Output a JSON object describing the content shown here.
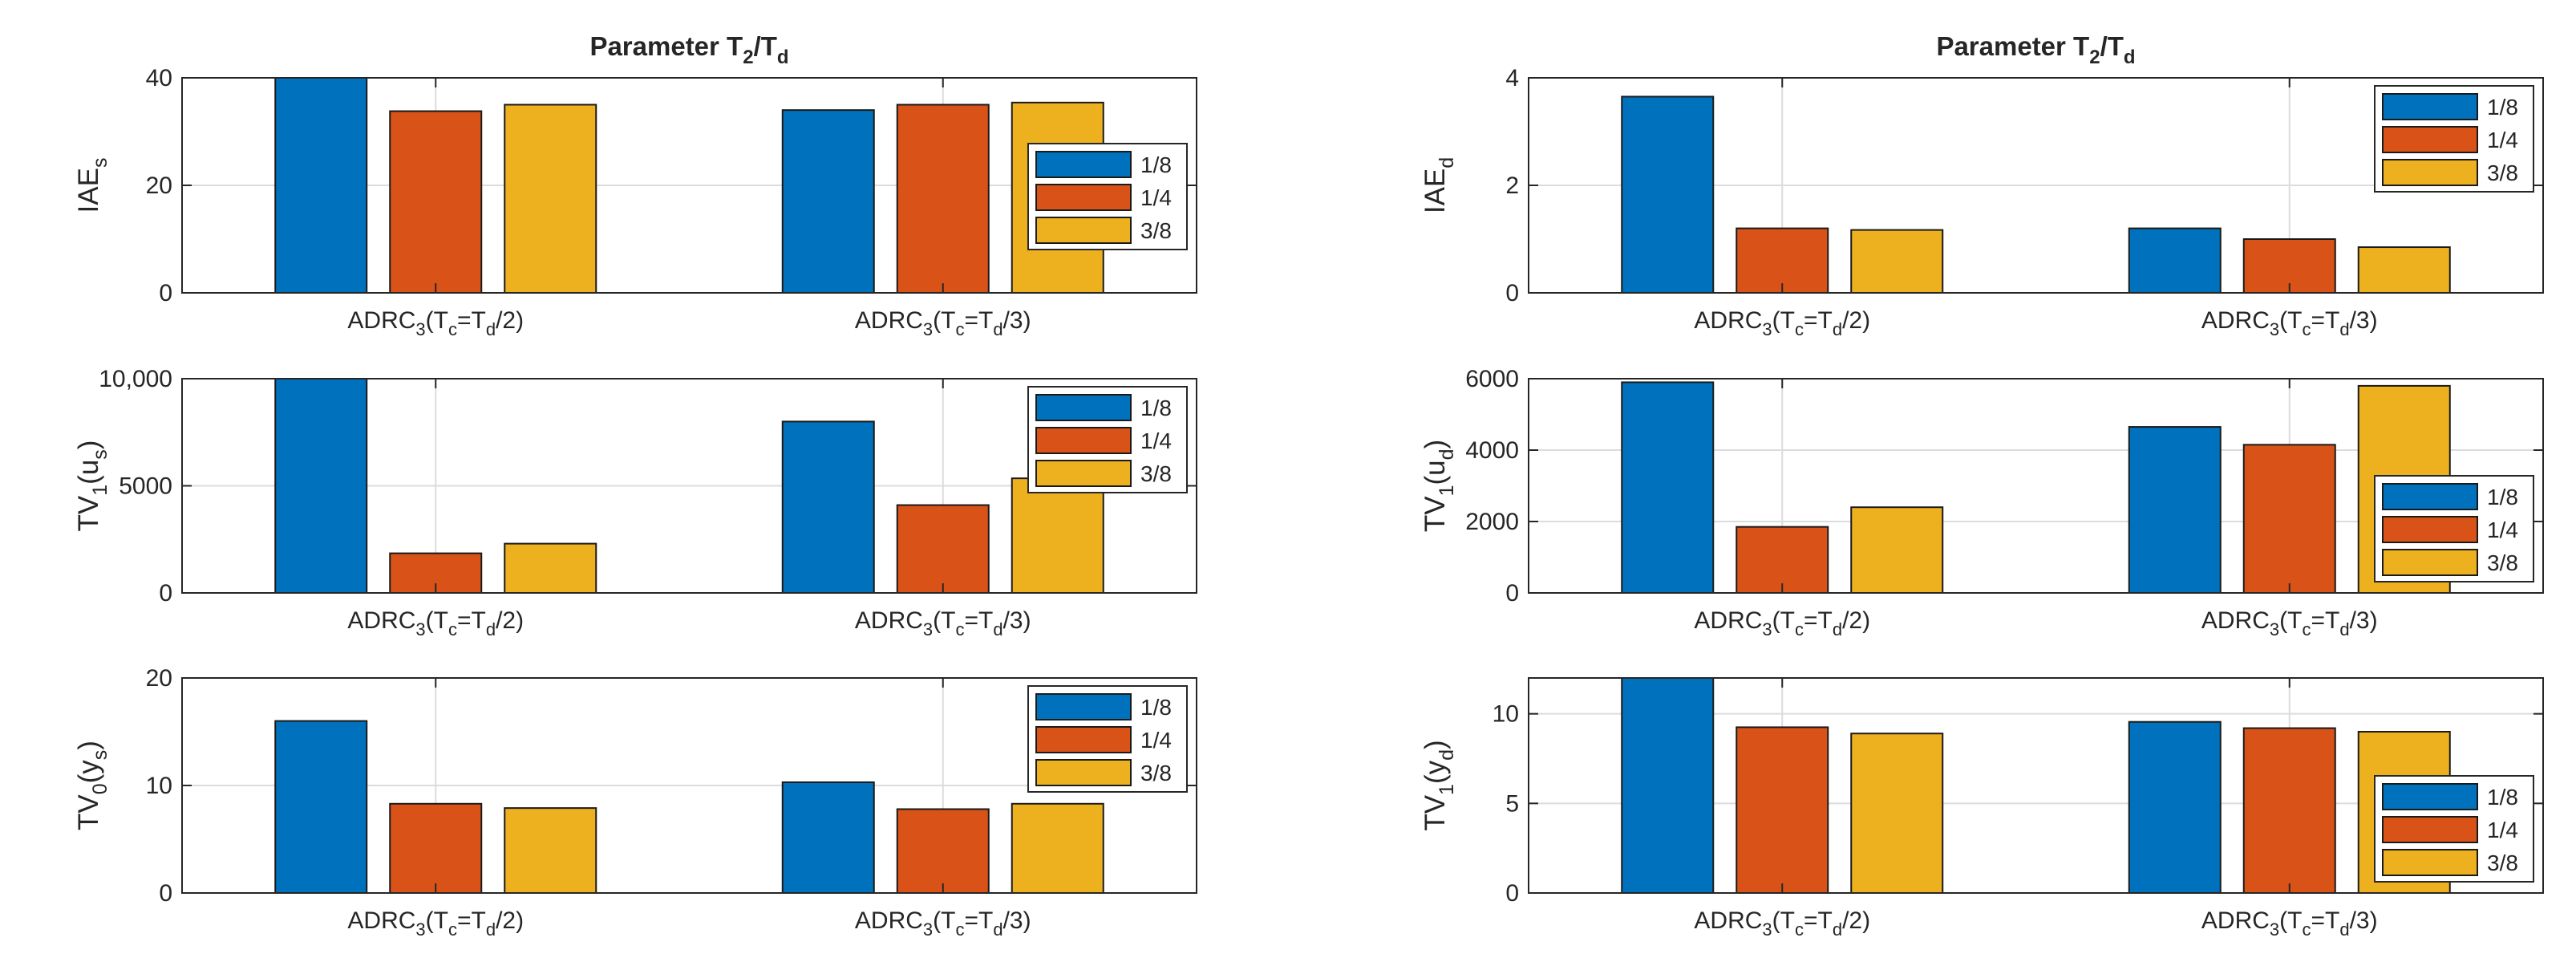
{
  "colors": {
    "s0": "#0072bd",
    "s1": "#d95319",
    "s2": "#edb120"
  },
  "chart_data": [
    {
      "type": "bar",
      "title": "Parameter T",
      "title_parts": [
        "2",
        "/T",
        "d"
      ],
      "ylabel": "IAE",
      "ylabel_sub": "s",
      "ylim": [
        0,
        40
      ],
      "yticks": [
        0,
        20,
        40
      ],
      "ytick_labels": [
        "0",
        "20",
        "40"
      ],
      "category_parts": [
        [
          "ADRC",
          "3",
          "(T",
          "c",
          "=T",
          "d",
          "/2)"
        ],
        [
          "ADRC",
          "3",
          "(T",
          "c",
          "=T",
          "d",
          "/3)"
        ]
      ],
      "series": [
        {
          "name": "1/8",
          "values": [
            40,
            34
          ]
        },
        {
          "name": "1/4",
          "values": [
            33.8,
            35
          ]
        },
        {
          "name": "3/8",
          "values": [
            35,
            35.4
          ]
        }
      ],
      "legend": "east"
    },
    {
      "type": "bar",
      "title": "Parameter T",
      "title_parts": [
        "2",
        "/T",
        "d"
      ],
      "ylabel": "IAE",
      "ylabel_sub": "d",
      "ylim": [
        0,
        4
      ],
      "yticks": [
        0,
        2,
        4
      ],
      "ytick_labels": [
        "0",
        "2",
        "4"
      ],
      "category_parts": [
        [
          "ADRC",
          "3",
          "(T",
          "c",
          "=T",
          "d",
          "/2)"
        ],
        [
          "ADRC",
          "3",
          "(T",
          "c",
          "=T",
          "d",
          "/3)"
        ]
      ],
      "series": [
        {
          "name": "1/8",
          "values": [
            3.65,
            1.2
          ]
        },
        {
          "name": "1/4",
          "values": [
            1.2,
            1.0
          ]
        },
        {
          "name": "3/8",
          "values": [
            1.17,
            0.85
          ]
        }
      ],
      "legend": "northeast"
    },
    {
      "type": "bar",
      "ylabel": "TV",
      "ylabel_sub": "1",
      "ylabel_arg": "u",
      "ylabel_arg_sub": "s",
      "ylim": [
        0,
        10000
      ],
      "yticks": [
        0,
        5000,
        10000
      ],
      "ytick_labels": [
        "0",
        "5000",
        "10,000"
      ],
      "category_parts": [
        [
          "ADRC",
          "3",
          "(T",
          "c",
          "=T",
          "d",
          "/2)"
        ],
        [
          "ADRC",
          "3",
          "(T",
          "c",
          "=T",
          "d",
          "/3)"
        ]
      ],
      "series": [
        {
          "name": "1/8",
          "values": [
            10000,
            8000
          ]
        },
        {
          "name": "1/4",
          "values": [
            1850,
            4100
          ]
        },
        {
          "name": "3/8",
          "values": [
            2300,
            5350
          ]
        }
      ],
      "legend": "northeast"
    },
    {
      "type": "bar",
      "ylabel": "TV",
      "ylabel_sub": "1",
      "ylabel_arg": "u",
      "ylabel_arg_sub": "d",
      "ylim": [
        0,
        6000
      ],
      "yticks": [
        0,
        2000,
        4000,
        6000
      ],
      "ytick_labels": [
        "0",
        "2000",
        "4000",
        "6000"
      ],
      "category_parts": [
        [
          "ADRC",
          "3",
          "(T",
          "c",
          "=T",
          "d",
          "/2)"
        ],
        [
          "ADRC",
          "3",
          "(T",
          "c",
          "=T",
          "d",
          "/3)"
        ]
      ],
      "series": [
        {
          "name": "1/8",
          "values": [
            5900,
            4650
          ]
        },
        {
          "name": "1/4",
          "values": [
            1850,
            4150
          ]
        },
        {
          "name": "3/8",
          "values": [
            2400,
            5800
          ]
        }
      ],
      "legend": "southeast"
    },
    {
      "type": "bar",
      "ylabel": "TV",
      "ylabel_sub": "0",
      "ylabel_arg": "y",
      "ylabel_arg_sub": "s",
      "ylim": [
        0,
        20
      ],
      "yticks": [
        0,
        10,
        20
      ],
      "ytick_labels": [
        "0",
        "10",
        "20"
      ],
      "category_parts": [
        [
          "ADRC",
          "3",
          "(T",
          "c",
          "=T",
          "d",
          "/2)"
        ],
        [
          "ADRC",
          "3",
          "(T",
          "c",
          "=T",
          "d",
          "/3)"
        ]
      ],
      "series": [
        {
          "name": "1/8",
          "values": [
            16,
            10.3
          ]
        },
        {
          "name": "1/4",
          "values": [
            8.3,
            7.8
          ]
        },
        {
          "name": "3/8",
          "values": [
            7.9,
            8.3
          ]
        }
      ],
      "legend": "northeast"
    },
    {
      "type": "bar",
      "ylabel": "TV",
      "ylabel_sub": "1",
      "ylabel_arg": "y",
      "ylabel_arg_sub": "d",
      "ylim": [
        0,
        12
      ],
      "yticks": [
        0,
        5,
        10
      ],
      "ytick_labels": [
        "0",
        "5",
        "10"
      ],
      "category_parts": [
        [
          "ADRC",
          "3",
          "(T",
          "c",
          "=T",
          "d",
          "/2)"
        ],
        [
          "ADRC",
          "3",
          "(T",
          "c",
          "=T",
          "d",
          "/3)"
        ]
      ],
      "series": [
        {
          "name": "1/8",
          "values": [
            12,
            9.55
          ]
        },
        {
          "name": "1/4",
          "values": [
            9.25,
            9.2
          ]
        },
        {
          "name": "3/8",
          "values": [
            8.9,
            9.0
          ]
        }
      ],
      "legend": "southeast"
    }
  ]
}
